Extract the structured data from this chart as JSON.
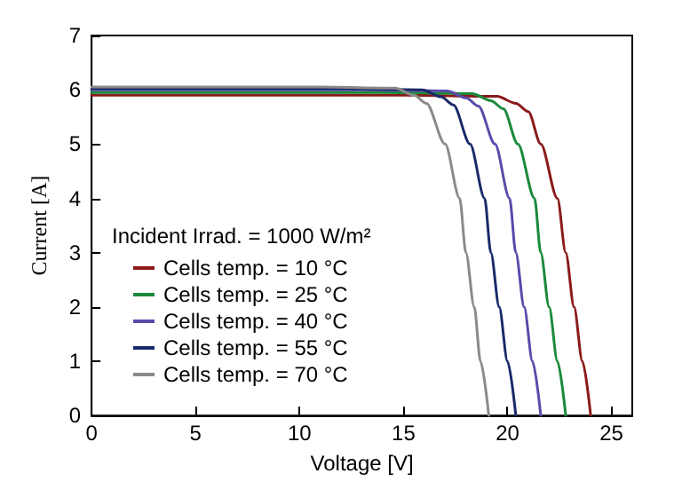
{
  "chart_data": {
    "type": "line",
    "xlabel": "Voltage [V]",
    "ylabel": "Current [A]",
    "legend_title": "Incident Irrad. = 1000 W/m²",
    "xlim": [
      0,
      26
    ],
    "xticks": [
      0,
      5,
      10,
      15,
      20,
      25
    ],
    "ylim": [
      0,
      7
    ],
    "yticks": [
      0,
      1,
      2,
      3,
      4,
      5,
      6,
      7
    ],
    "grid": false,
    "legend": "bottom left",
    "marker": "none",
    "line_style": "solid",
    "series": [
      {
        "name": "Cells temp. = 10 °C",
        "color": "#8b1a1a",
        "x": [
          0,
          15,
          19.5,
          20.4,
          21.0,
          21.6,
          22.4,
          22.8,
          23.2,
          23.6,
          24.0
        ],
        "values": [
          5.9,
          5.9,
          5.88,
          5.75,
          5.6,
          5.0,
          4.0,
          3.0,
          2.0,
          1.0,
          0
        ]
      },
      {
        "name": "Cells temp. = 25 °C",
        "color": "#1a8a3a",
        "x": [
          0,
          14,
          18.3,
          19.2,
          19.8,
          20.5,
          21.3,
          21.6,
          22.0,
          22.4,
          22.8
        ],
        "values": [
          5.95,
          5.95,
          5.93,
          5.8,
          5.65,
          5.0,
          4.0,
          3.0,
          2.0,
          1.0,
          0
        ]
      },
      {
        "name": "Cells temp. = 40 °C",
        "color": "#5a4aaa",
        "x": [
          0,
          13,
          17.1,
          18.0,
          18.6,
          19.4,
          20.1,
          20.4,
          20.8,
          21.2,
          21.6
        ],
        "values": [
          6.0,
          6.0,
          5.98,
          5.85,
          5.7,
          5.0,
          4.0,
          3.0,
          2.0,
          1.0,
          0
        ]
      },
      {
        "name": "Cells temp. = 55 °C",
        "color": "#1a2a6a",
        "x": [
          0,
          12,
          15.9,
          16.8,
          17.4,
          18.2,
          18.9,
          19.2,
          19.6,
          20.0,
          20.4
        ],
        "values": [
          6.02,
          6.02,
          6.0,
          5.87,
          5.72,
          5.0,
          4.0,
          3.0,
          2.0,
          1.0,
          0
        ]
      },
      {
        "name": "Cells temp. = 70 °C",
        "color": "#8a8a8a",
        "x": [
          0,
          11,
          14.6,
          15.5,
          16.1,
          17.0,
          17.7,
          18.0,
          18.4,
          18.7,
          19.1
        ],
        "values": [
          6.05,
          6.05,
          6.03,
          5.9,
          5.75,
          5.0,
          4.0,
          3.0,
          2.0,
          1.0,
          0
        ]
      }
    ]
  }
}
